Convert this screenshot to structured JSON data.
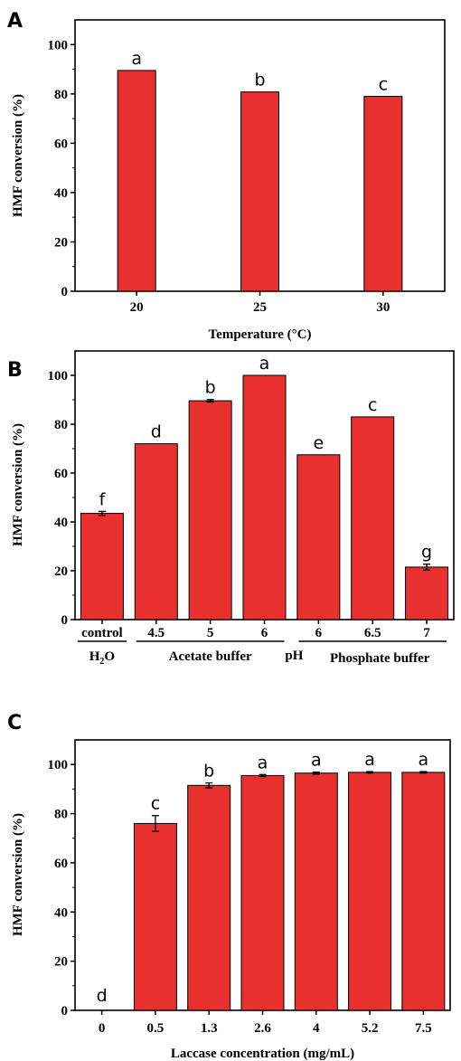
{
  "chart_data": [
    {
      "panel": "A",
      "type": "bar",
      "categories": [
        "20",
        "25",
        "30"
      ],
      "values": [
        89.5,
        80.8,
        79.0
      ],
      "letters": [
        "a",
        "b",
        "c"
      ],
      "errors": [
        0,
        0,
        0
      ],
      "xlabel": "Temperature (°C)",
      "ylabel": "HMF conversion (%)",
      "ylim": [
        0,
        110
      ],
      "yticks": [
        "0",
        "20",
        "40",
        "60",
        "80",
        "100"
      ],
      "bar_color": "#e8302e"
    },
    {
      "panel": "B",
      "type": "bar",
      "categories": [
        "control",
        "4.5",
        "5",
        "6",
        "6",
        "6.5",
        "7"
      ],
      "values": [
        43.5,
        72.0,
        89.6,
        100.0,
        67.5,
        83.0,
        21.5
      ],
      "letters": [
        "f",
        "d",
        "b",
        "a",
        "e",
        "c",
        "g"
      ],
      "errors": [
        0.8,
        0,
        0.5,
        0,
        0,
        0,
        1.2
      ],
      "groups": [
        {
          "label": "H2O",
          "main": "H",
          "sub": "2",
          "tail": "O"
        },
        {
          "label": "Acetate buffer"
        },
        {
          "label": "pH"
        },
        {
          "label": "Phosphate buffer"
        }
      ],
      "ylabel": "HMF conversion (%)",
      "ylim": [
        0,
        110
      ],
      "yticks": [
        "0",
        "20",
        "40",
        "60",
        "80",
        "100"
      ],
      "bar_color": "#e8302e"
    },
    {
      "panel": "C",
      "type": "bar",
      "categories": [
        "0",
        "0.5",
        "1.3",
        "2.6",
        "4",
        "5.2",
        "7.5"
      ],
      "values": [
        0,
        76.0,
        91.5,
        95.5,
        96.5,
        96.8,
        96.8
      ],
      "letters": [
        "d",
        "c",
        "b",
        "a",
        "a",
        "a",
        "a"
      ],
      "errors": [
        0,
        3.2,
        1.0,
        0.4,
        0.4,
        0.3,
        0.3
      ],
      "xlabel": "Laccase concentration (mg/mL)",
      "ylabel": "HMF conversion (%)",
      "ylim": [
        0,
        110
      ],
      "yticks": [
        "0",
        "20",
        "40",
        "60",
        "80",
        "100"
      ],
      "bar_color": "#e8302e"
    }
  ]
}
